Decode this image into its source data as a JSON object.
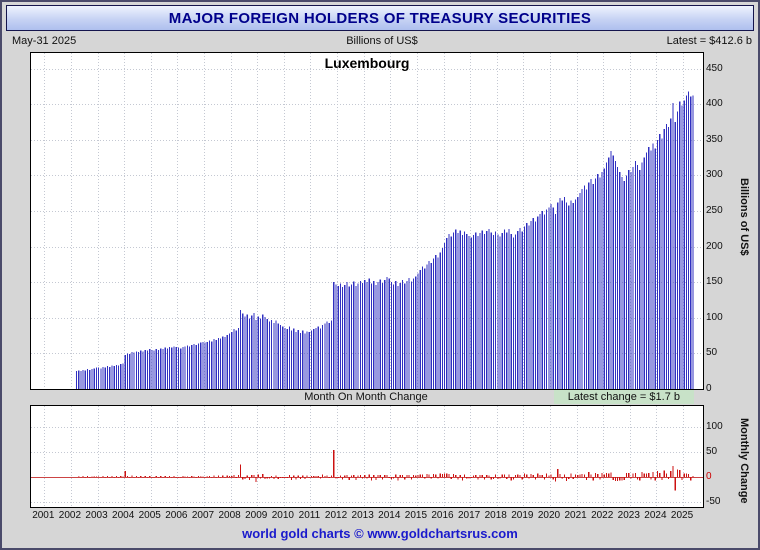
{
  "header": {
    "title": "MAJOR FOREIGN HOLDERS OF TREASURY SECURITIES",
    "date": "May-31  2025",
    "units": "Billions of US$",
    "latest": "Latest = $412.6 b"
  },
  "footer": {
    "text": "world gold charts © www.goldchartsrus.com"
  },
  "colors": {
    "holdings_bar": "#3030c0",
    "change_bar": "#cc1111",
    "grid": "#c4c8d2",
    "zero_line": "#cc4444",
    "zero_tick": "#cc0000",
    "title_text": "#00008b",
    "footer_text": "#1a1acc",
    "latest_change_highlight": "#c8e2c8"
  },
  "chart_data": [
    {
      "type": "bar",
      "title": "Luxembourg",
      "ylabel": "Billions of US$",
      "frequency": "monthly",
      "start": "2002-03",
      "end": "2025-05",
      "latest": {
        "label": "Latest = $412.6 b",
        "value": 412.6
      },
      "ylim": [
        0,
        472
      ],
      "yticks": [
        0,
        50,
        100,
        150,
        200,
        250,
        300,
        350,
        400,
        450
      ],
      "x_axis_years": [
        2001,
        2002,
        2003,
        2004,
        2005,
        2006,
        2007,
        2008,
        2009,
        2010,
        2011,
        2012,
        2013,
        2014,
        2015,
        2016,
        2017,
        2018,
        2019,
        2020,
        2021,
        2022,
        2023,
        2024,
        2025
      ],
      "values": [
        25,
        26,
        25,
        27,
        26,
        28,
        27,
        28,
        29,
        30,
        30,
        29,
        31,
        30,
        32,
        31,
        33,
        32,
        34,
        33,
        35,
        36,
        48,
        50,
        49,
        52,
        51,
        53,
        52,
        54,
        53,
        55,
        54,
        56,
        55,
        54,
        56,
        55,
        57,
        56,
        58,
        57,
        59,
        58,
        60,
        59,
        58,
        57,
        59,
        60,
        61,
        60,
        62,
        63,
        62,
        64,
        65,
        66,
        65,
        66,
        68,
        67,
        70,
        69,
        72,
        71,
        74,
        73,
        76,
        78,
        80,
        84,
        82,
        86,
        111,
        106,
        102,
        105,
        99,
        103,
        107,
        97,
        102,
        99,
        105,
        101,
        98,
        95,
        97,
        93,
        96,
        92,
        90,
        88,
        86,
        84,
        88,
        82,
        85,
        80,
        83,
        79,
        82,
        78,
        81,
        80,
        82,
        84,
        86,
        88,
        85,
        90,
        92,
        95,
        93,
        96,
        150,
        147,
        145,
        148,
        143,
        146,
        150,
        144,
        147,
        151,
        145,
        148,
        152,
        149,
        153,
        150,
        155,
        148,
        152,
        146,
        150,
        154,
        149,
        153,
        157,
        155,
        150,
        147,
        152,
        145,
        149,
        153,
        148,
        152,
        156,
        151,
        155,
        158,
        162,
        167,
        172,
        169,
        175,
        180,
        177,
        183,
        188,
        185,
        192,
        198,
        205,
        212,
        218,
        214,
        220,
        224,
        219,
        223,
        216,
        221,
        218,
        215,
        213,
        216,
        220,
        215,
        219,
        223,
        218,
        222,
        225,
        220,
        216,
        221,
        217,
        214,
        219,
        224,
        220,
        225,
        218,
        213,
        217,
        222,
        226,
        221,
        228,
        233,
        230,
        236,
        240,
        235,
        242,
        246,
        250,
        245,
        252,
        255,
        260,
        255,
        246,
        262,
        268,
        265,
        270,
        262,
        258,
        265,
        261,
        266,
        270,
        275,
        281,
        286,
        280,
        290,
        295,
        288,
        296,
        302,
        297,
        305,
        310,
        318,
        325,
        334,
        328,
        320,
        312,
        305,
        298,
        292,
        300,
        308,
        305,
        312,
        320,
        315,
        308,
        318,
        325,
        332,
        340,
        335,
        345,
        338,
        350,
        358,
        352,
        365,
        372,
        368,
        380,
        402,
        375,
        390,
        404,
        398,
        405,
        412,
        418,
        410.9,
        412.6
      ]
    },
    {
      "type": "bar",
      "title": "Month On Month Change",
      "ylabel": "Monthly Change",
      "note": "values are first differences of the Luxembourg monthly holdings series",
      "latest": {
        "label": "Latest change = $1.7 b",
        "value": 1.7
      },
      "ylim": [
        -60,
        146
      ],
      "yticks": [
        -50,
        0,
        50,
        100
      ]
    }
  ]
}
